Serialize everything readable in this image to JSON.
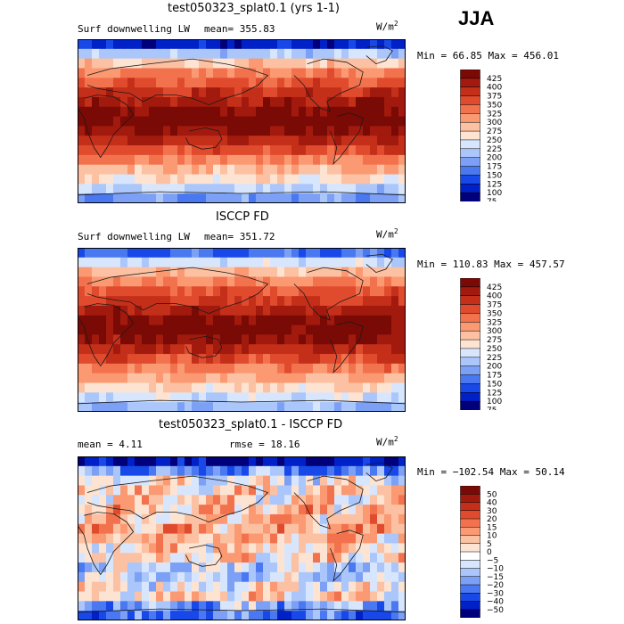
{
  "season": "JJA",
  "colors": {
    "abs_scale": [
      "#00007a",
      "#0020c8",
      "#1848e8",
      "#4a78f0",
      "#7ca0f5",
      "#aac6fa",
      "#d8e6fd",
      "#fde3d2",
      "#fcc1a2",
      "#fb9a72",
      "#f3724e",
      "#e04b2e",
      "#c42f1a",
      "#a21a0e",
      "#7a0a05"
    ],
    "diff_scale": [
      "#00007a",
      "#0020c8",
      "#1848e8",
      "#4a78f0",
      "#7ca0f5",
      "#aac6fa",
      "#d8e6fd",
      "#ffffff",
      "#fde3d2",
      "#fcc1a2",
      "#fb9a72",
      "#f3724e",
      "#e04b2e",
      "#c42f1a",
      "#a21a0e",
      "#7a0a05"
    ],
    "coast": "#1a1a1a"
  },
  "panels": [
    {
      "title": "test050323_splat0.1 (yrs 1-1)",
      "variable": "Surf downwelling LW",
      "stat": "mean= 355.83",
      "units": "W/m",
      "units_sup": "2",
      "minmax": "Min =  66.85 Max = 456.01"
    },
    {
      "title": "ISCCP FD",
      "variable": "Surf downwelling LW",
      "stat": "mean= 351.72",
      "units": "W/m",
      "units_sup": "2",
      "minmax": "Min = 110.83 Max = 457.57"
    },
    {
      "title": "test050323_splat0.1 - ISCCP FD",
      "stat": "mean =   4.11",
      "stat2": "rmse =  18.16",
      "units": "W/m",
      "units_sup": "2",
      "minmax": "Min = −102.54 Max =  50.14"
    }
  ],
  "chart_data": [
    {
      "type": "heatmap",
      "subtype": "global-map",
      "title": "test050323_splat0.1 (yrs 1-1)",
      "variable": "Surf downwelling LW",
      "units": "W/m2",
      "mean": 355.83,
      "min": 66.85,
      "max": 456.01,
      "colorbar_ticks": [
        "425",
        "400",
        "375",
        "350",
        "325",
        "300",
        "275",
        "250",
        "225",
        "200",
        "175",
        "150",
        "125",
        "100",
        "75"
      ],
      "zonal_profile": [
        90,
        190,
        260,
        300,
        330,
        360,
        385,
        410,
        420,
        400,
        370,
        340,
        300,
        270,
        240,
        200,
        160
      ]
    },
    {
      "type": "heatmap",
      "subtype": "global-map",
      "title": "ISCCP FD",
      "variable": "Surf downwelling LW",
      "units": "W/m2",
      "mean": 351.72,
      "min": 110.83,
      "max": 457.57,
      "colorbar_ticks": [
        "425",
        "400",
        "375",
        "350",
        "325",
        "300",
        "275",
        "250",
        "225",
        "200",
        "175",
        "150",
        "125",
        "100",
        "75"
      ],
      "zonal_profile": [
        130,
        210,
        265,
        300,
        330,
        355,
        380,
        405,
        415,
        400,
        370,
        340,
        305,
        275,
        245,
        210,
        180
      ]
    },
    {
      "type": "heatmap",
      "subtype": "global-map",
      "title": "test050323_splat0.1 - ISCCP FD",
      "units": "W/m2",
      "mean": 4.11,
      "rmse": 18.16,
      "min": -102.54,
      "max": 50.14,
      "colorbar_ticks": [
        "50",
        "40",
        "30",
        "20",
        "15",
        "10",
        "5",
        "0",
        "−5",
        "−10",
        "−15",
        "−20",
        "−30",
        "−40",
        "−50"
      ],
      "zonal_profile": [
        -40,
        -15,
        0,
        5,
        5,
        8,
        8,
        10,
        8,
        5,
        5,
        -5,
        -5,
        0,
        5,
        -10,
        -20
      ]
    }
  ]
}
